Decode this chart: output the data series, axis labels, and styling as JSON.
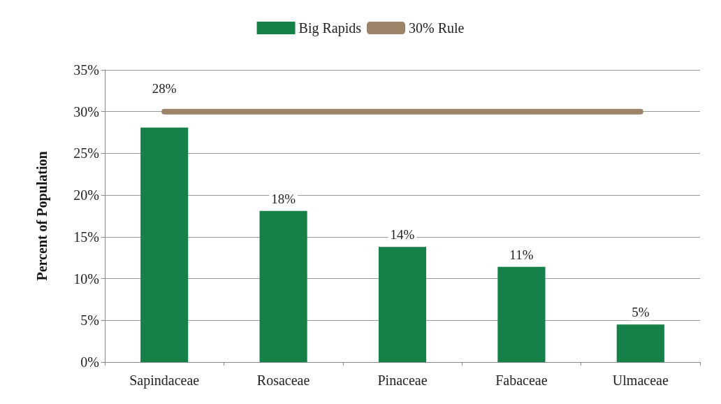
{
  "chart_data": {
    "type": "bar",
    "ylabel": "Percent of Population",
    "categories": [
      "Sapindaceae",
      "Rosaceae",
      "Pinaceae",
      "Fabaceae",
      "Ulmaceae"
    ],
    "series": [
      {
        "name": "Big Rapids",
        "color": "#168049",
        "values": [
          28.1,
          18.1,
          13.8,
          11.4,
          4.5
        ],
        "value_labels": [
          "28%",
          "18%",
          "14%",
          "11%",
          "5%"
        ]
      },
      {
        "name": "30% Rule",
        "type": "line",
        "color": "#9c8468",
        "values": [
          30,
          30,
          30,
          30,
          30
        ]
      }
    ],
    "ylim": [
      0,
      35
    ],
    "yticks": [
      {
        "value": 0,
        "label": "0%"
      },
      {
        "value": 5,
        "label": "5%"
      },
      {
        "value": 10,
        "label": "10%"
      },
      {
        "value": 15,
        "label": "15%"
      },
      {
        "value": 20,
        "label": "20%"
      },
      {
        "value": 25,
        "label": "25%"
      },
      {
        "value": 30,
        "label": "30%"
      },
      {
        "value": 35,
        "label": "35%"
      }
    ],
    "grid": "y",
    "legend": "top"
  }
}
